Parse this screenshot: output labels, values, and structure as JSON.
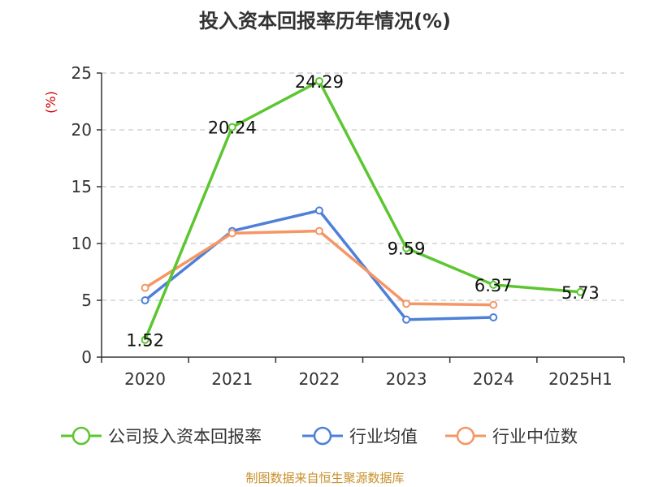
{
  "chart_data": {
    "type": "line",
    "title": "投入资本回报率历年情况(%)",
    "ylabel": "(%)",
    "xlabel": "",
    "categories": [
      "2020",
      "2021",
      "2022",
      "2023",
      "2024",
      "2025H1"
    ],
    "ylim": [
      0,
      25
    ],
    "yticks": [
      0,
      5,
      10,
      15,
      20,
      25
    ],
    "grid": true,
    "legend_position": "bottom",
    "series": [
      {
        "name": "公司投入资本回报率",
        "color": "#5cc631",
        "values": [
          1.52,
          20.24,
          24.29,
          9.59,
          6.37,
          5.73
        ],
        "labels": [
          "1.52",
          "20.24",
          "24.29",
          "9.59",
          "6.37",
          "5.73"
        ]
      },
      {
        "name": "行业均值",
        "color": "#4e80d8",
        "values": [
          5.0,
          11.1,
          12.9,
          3.3,
          3.5,
          null
        ]
      },
      {
        "name": "行业中位数",
        "color": "#f59665",
        "values": [
          6.1,
          10.9,
          11.1,
          4.7,
          4.6,
          null
        ]
      }
    ],
    "source": "制图数据来自恒生聚源数据库"
  }
}
